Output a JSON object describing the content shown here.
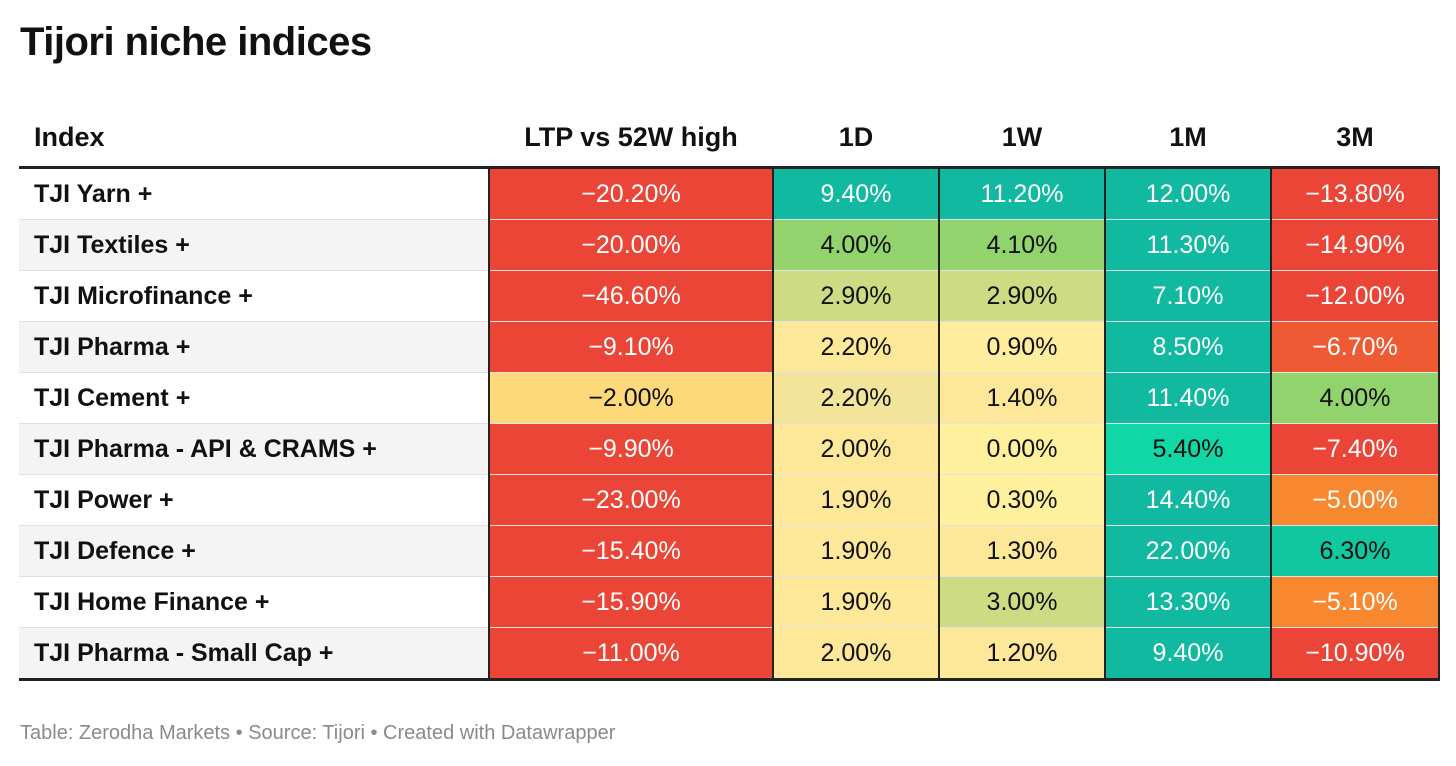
{
  "title": "Tijori niche indices",
  "footer": "Table: Zerodha Markets • Source: Tijori • Created with Datawrapper",
  "colors": {
    "red": "#ea4537",
    "red_orange": "#ee5a34",
    "orange": "#f7882f",
    "teal": "#10b99f",
    "bright_teal": "#10d7a5",
    "green": "#92d36e",
    "yellow_green": "#cddb82",
    "light_yellow": "#fde89a",
    "yellow": "#fdd97a",
    "pale_yellow": "#fff09d"
  },
  "chart_data": {
    "type": "table",
    "columns": [
      "Index",
      "LTP vs 52W high",
      "1D",
      "1W",
      "1M",
      "3M"
    ],
    "rows": [
      {
        "name": "TJI Yarn +",
        "values": [
          "−20.20%",
          "9.40%",
          "11.20%",
          "12.00%",
          "−13.80%"
        ],
        "colors": [
          "#ea4537",
          "#10b99f",
          "#10b99f",
          "#10b99f",
          "#ea4537"
        ]
      },
      {
        "name": "TJI Textiles +",
        "values": [
          "−20.00%",
          "4.00%",
          "4.10%",
          "11.30%",
          "−14.90%"
        ],
        "colors": [
          "#ea4537",
          "#92d36e",
          "#92d36e",
          "#10b99f",
          "#ea4537"
        ]
      },
      {
        "name": "TJI Microfinance +",
        "values": [
          "−46.60%",
          "2.90%",
          "2.90%",
          "7.10%",
          "−12.00%"
        ],
        "colors": [
          "#ea4537",
          "#cddb82",
          "#cddb82",
          "#10b99f",
          "#ea4537"
        ]
      },
      {
        "name": "TJI Pharma +",
        "values": [
          "−9.10%",
          "2.20%",
          "0.90%",
          "8.50%",
          "−6.70%"
        ],
        "colors": [
          "#ea4537",
          "#fde89a",
          "#ffed9e",
          "#10b99f",
          "#ee5a34"
        ]
      },
      {
        "name": "TJI Cement +",
        "values": [
          "−2.00%",
          "2.20%",
          "1.40%",
          "11.40%",
          "4.00%"
        ],
        "colors": [
          "#fdd97a",
          "#f2e59a",
          "#fde89a",
          "#10b99f",
          "#92d36e"
        ]
      },
      {
        "name": "TJI Pharma - API & CRAMS +",
        "values": [
          "−9.90%",
          "2.00%",
          "0.00%",
          "5.40%",
          "−7.40%"
        ],
        "colors": [
          "#ea4537",
          "#fde89a",
          "#fff09d",
          "#10d7a5",
          "#ea4537"
        ]
      },
      {
        "name": "TJI Power +",
        "values": [
          "−23.00%",
          "1.90%",
          "0.30%",
          "14.40%",
          "−5.00%"
        ],
        "colors": [
          "#ea4537",
          "#fde89a",
          "#fff09d",
          "#10b99f",
          "#f7882f"
        ]
      },
      {
        "name": "TJI Defence +",
        "values": [
          "−15.40%",
          "1.90%",
          "1.30%",
          "22.00%",
          "6.30%"
        ],
        "colors": [
          "#ea4537",
          "#fde89a",
          "#fde89a",
          "#10b99f",
          "#10c79f"
        ]
      },
      {
        "name": "TJI Home Finance +",
        "values": [
          "−15.90%",
          "1.90%",
          "3.00%",
          "13.30%",
          "−5.10%"
        ],
        "colors": [
          "#ea4537",
          "#fde89a",
          "#cddb82",
          "#10b99f",
          "#f7882f"
        ]
      },
      {
        "name": "TJI Pharma - Small Cap +",
        "values": [
          "−11.00%",
          "2.00%",
          "1.20%",
          "9.40%",
          "−10.90%"
        ],
        "colors": [
          "#ea4537",
          "#fde89a",
          "#fde89a",
          "#10b99f",
          "#ea4537"
        ]
      }
    ]
  }
}
